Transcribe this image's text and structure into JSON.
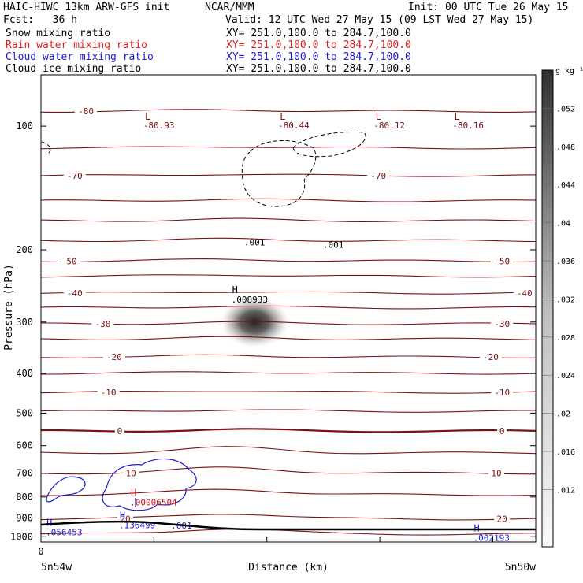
{
  "header": {
    "model": "HAIC-HIWC 13km ARW-GFS init",
    "org": "NCAR/MMM",
    "init": "Init: 00 UTC Tue 26 May 15",
    "fcst": "Fcst:   36 h",
    "valid": "Valid: 12 UTC Wed 27 May 15 (09 LST Wed 27 May 15)",
    "fields": [
      {
        "name": "Snow mixing ratio",
        "xy": "XY= 251.0,100.0 to 284.7,100.0",
        "color": "#000000"
      },
      {
        "name": "Rain water mixing ratio",
        "xy": "XY= 251.0,100.0 to 284.7,100.0",
        "color": "#e02020"
      },
      {
        "name": "Cloud water mixing ratio",
        "xy": "XY= 251.0,100.0 to 284.7,100.0",
        "color": "#1a1ad0"
      },
      {
        "name": "Cloud ice mixing ratio",
        "xy": "XY= 251.0,100.0 to 284.7,100.0",
        "color": "#000000"
      }
    ]
  },
  "colors": {
    "temperature": "#7a1010",
    "rain": "#c81414",
    "cloud_water": "#1a1ad0",
    "ink": "#000000"
  },
  "chart_data": {
    "type": "contour",
    "xlabel": "Distance (km)",
    "ylabel": "Pressure (hPa)",
    "x_ticks": [
      0
    ],
    "x_range_km": [
      0,
      440
    ],
    "left_label": "5n54w",
    "right_label": "5n50w",
    "y_range_hPa": [
      1030,
      75
    ],
    "y_ticks": [
      100,
      200,
      300,
      400,
      500,
      600,
      700,
      800,
      900,
      1000
    ],
    "y_scale": "log",
    "colorbar": {
      "unit": "g kg⁻¹",
      "ticks": [
        ".012",
        ".016",
        ".02",
        ".024",
        ".028",
        ".032",
        ".036",
        ".04",
        ".044",
        ".048",
        ".052"
      ]
    },
    "temperature_levels": [
      {
        "value": -80,
        "p": 92
      },
      {
        "value": -75,
        "p": 113
      },
      {
        "value": -70,
        "p": 132
      },
      {
        "value": -65,
        "p": 152
      },
      {
        "value": -60,
        "p": 170
      },
      {
        "value": -55,
        "p": 190
      },
      {
        "value": -50,
        "p": 213
      },
      {
        "value": -45,
        "p": 232
      },
      {
        "value": -40,
        "p": 255
      },
      {
        "value": -35,
        "p": 277
      },
      {
        "value": -30,
        "p": 303
      },
      {
        "value": -25,
        "p": 330
      },
      {
        "value": -20,
        "p": 365
      },
      {
        "value": -15,
        "p": 400
      },
      {
        "value": -10,
        "p": 445
      },
      {
        "value": -5,
        "p": 495
      },
      {
        "value": 0,
        "p": 553
      },
      {
        "value": 5,
        "p": 625
      },
      {
        "value": 10,
        "p": 700
      },
      {
        "value": 15,
        "p": 790
      },
      {
        "value": 20,
        "p": 905
      },
      {
        "value": 25,
        "p": 985
      }
    ],
    "temperature_labels": [
      {
        "text": "-80",
        "x": 40,
        "p": 92
      },
      {
        "text": "-70",
        "x": 30,
        "p": 132
      },
      {
        "text": "-70",
        "x": 300,
        "p": 132
      },
      {
        "text": "-50",
        "x": 25,
        "p": 213
      },
      {
        "text": "-50",
        "x": 410,
        "p": 213
      },
      {
        "text": "-40",
        "x": 30,
        "p": 255
      },
      {
        "text": "-40",
        "x": 430,
        "p": 255
      },
      {
        "text": "-30",
        "x": 55,
        "p": 303
      },
      {
        "text": "-30",
        "x": 410,
        "p": 303
      },
      {
        "text": "-20",
        "x": 65,
        "p": 365
      },
      {
        "text": "-20",
        "x": 400,
        "p": 365
      },
      {
        "text": "-10",
        "x": 60,
        "p": 445
      },
      {
        "text": "-10",
        "x": 410,
        "p": 445
      },
      {
        "text": "0",
        "x": 70,
        "p": 553
      },
      {
        "text": "0",
        "x": 410,
        "p": 553
      },
      {
        "text": "10",
        "x": 80,
        "p": 700
      },
      {
        "text": "10",
        "x": 405,
        "p": 700
      },
      {
        "text": "20",
        "x": 410,
        "p": 905
      },
      {
        "text": "20",
        "x": 75,
        "p": 905
      }
    ],
    "minima": [
      {
        "label": "L",
        "value": "-80.93",
        "x": 95,
        "p": 92
      },
      {
        "label": "L",
        "value": "-80.44",
        "x": 215,
        "p": 92
      },
      {
        "label": "L",
        "value": "-80.12",
        "x": 300,
        "p": 92
      },
      {
        "label": "L",
        "value": "-80.16",
        "x": 370,
        "p": 92
      }
    ],
    "maxima": [
      {
        "label": "H",
        "value": ".008933",
        "x": 170,
        "p": 255,
        "series": "Cloud ice"
      },
      {
        "label": "H",
        "value": ".00006504",
        "x": 80,
        "p": 795,
        "series": "Rain water"
      },
      {
        "label": "H",
        "value": ".056453",
        "x": 5,
        "p": 940,
        "series": "Cloud water"
      },
      {
        "label": "H",
        "value": ".136499",
        "x": 70,
        "p": 905,
        "series": "Cloud water"
      },
      {
        "label": "H",
        "value": ".002193",
        "x": 385,
        "p": 970,
        "series": "Cloud water"
      }
    ],
    "contour_labels": [
      {
        "text": ".001",
        "x": 190,
        "p": 195,
        "series": "Cloud ice"
      },
      {
        "text": ".001",
        "x": 260,
        "p": 198,
        "series": "Cloud ice"
      },
      {
        "text": ".001",
        "x": 125,
        "p": 955,
        "series": "Cloud water"
      }
    ],
    "snow_max": {
      "value": 0.052,
      "x": 190,
      "p": 300
    }
  }
}
